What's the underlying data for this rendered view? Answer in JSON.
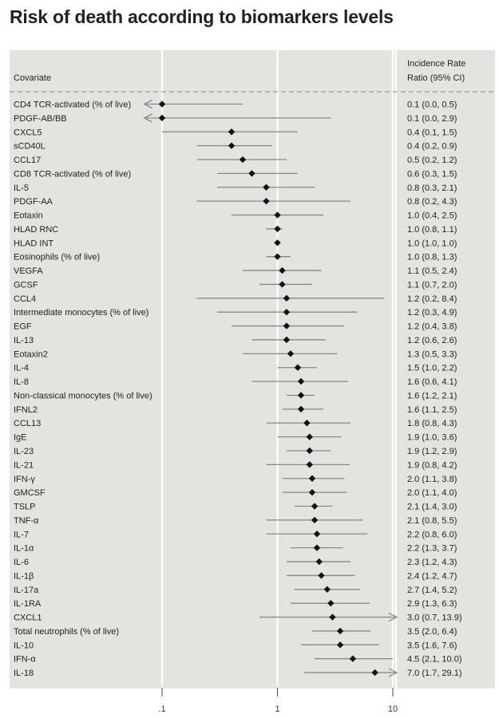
{
  "title": "Risk of death according to biomarkers levels",
  "chart_data": {
    "type": "forest",
    "xscale": "log",
    "ylabel": "Covariate",
    "right_header": [
      "Incidence Rate",
      "Ratio (95% CI)"
    ],
    "xticks": [
      {
        "value": 0.1,
        "label": ".1"
      },
      {
        "value": 1,
        "label": "1"
      },
      {
        "value": 10,
        "label": "10"
      }
    ],
    "reference_lines": [
      0.1,
      1,
      10
    ],
    "xlim": [
      0.07,
      10
    ],
    "colors": {
      "panel": "#e3e3df",
      "line": "#888888",
      "marker": "#111111"
    },
    "rows": [
      {
        "label": "CD4 TCR-activated (% of live)",
        "irr": 0.1,
        "lo": 0.0,
        "hi": 0.5,
        "text": "0.1 (0.0, 0.5)"
      },
      {
        "label": "PDGF-AB/BB",
        "irr": 0.1,
        "lo": 0.0,
        "hi": 2.9,
        "text": "0.1 (0.0, 2.9)"
      },
      {
        "label": "CXCL5",
        "irr": 0.4,
        "lo": 0.1,
        "hi": 1.5,
        "text": "0.4 (0.1, 1.5)"
      },
      {
        "label": "sCD40L",
        "irr": 0.4,
        "lo": 0.2,
        "hi": 0.9,
        "text": "0.4 (0.2, 0.9)"
      },
      {
        "label": "CCL17",
        "irr": 0.5,
        "lo": 0.2,
        "hi": 1.2,
        "text": "0.5 (0.2, 1.2)"
      },
      {
        "label": "CD8 TCR-activated (% of live)",
        "irr": 0.6,
        "lo": 0.3,
        "hi": 1.5,
        "text": "0.6 (0.3, 1.5)"
      },
      {
        "label": "IL-5",
        "irr": 0.8,
        "lo": 0.3,
        "hi": 2.1,
        "text": "0.8 (0.3, 2.1)"
      },
      {
        "label": "PDGF-AA",
        "irr": 0.8,
        "lo": 0.2,
        "hi": 4.3,
        "text": "0.8 (0.2, 4.3)"
      },
      {
        "label": "Eotaxin",
        "irr": 1.0,
        "lo": 0.4,
        "hi": 2.5,
        "text": "1.0 (0.4, 2.5)"
      },
      {
        "label": "HLAD RNC",
        "irr": 1.0,
        "lo": 0.8,
        "hi": 1.1,
        "text": "1.0 (0.8, 1.1)"
      },
      {
        "label": "HLAD INT",
        "irr": 1.0,
        "lo": 1.0,
        "hi": 1.0,
        "text": "1.0 (1.0, 1.0)"
      },
      {
        "label": "Eosinophils (% of live)",
        "irr": 1.0,
        "lo": 0.8,
        "hi": 1.3,
        "text": "1.0 (0.8, 1.3)"
      },
      {
        "label": "VEGFA",
        "irr": 1.1,
        "lo": 0.5,
        "hi": 2.4,
        "text": "1.1 (0.5, 2.4)"
      },
      {
        "label": "GCSF",
        "irr": 1.1,
        "lo": 0.7,
        "hi": 2.0,
        "text": "1.1 (0.7, 2.0)"
      },
      {
        "label": "CCL4",
        "irr": 1.2,
        "lo": 0.2,
        "hi": 8.4,
        "text": "1.2 (0.2, 8.4)"
      },
      {
        "label": "Intermediate monocytes (% of live)",
        "irr": 1.2,
        "lo": 0.3,
        "hi": 4.9,
        "text": "1.2 (0.3, 4.9)"
      },
      {
        "label": "EGF",
        "irr": 1.2,
        "lo": 0.4,
        "hi": 3.8,
        "text": "1.2 (0.4, 3.8)"
      },
      {
        "label": "IL-13",
        "irr": 1.2,
        "lo": 0.6,
        "hi": 2.6,
        "text": "1.2 (0.6, 2.6)"
      },
      {
        "label": "Eotaxin2",
        "irr": 1.3,
        "lo": 0.5,
        "hi": 3.3,
        "text": "1.3 (0.5, 3.3)"
      },
      {
        "label": "IL-4",
        "irr": 1.5,
        "lo": 1.0,
        "hi": 2.2,
        "text": "1.5 (1.0, 2.2)"
      },
      {
        "label": "IL-8",
        "irr": 1.6,
        "lo": 0.6,
        "hi": 4.1,
        "text": "1.6 (0.6, 4.1)"
      },
      {
        "label": "Non-classical monocytes (% of live)",
        "irr": 1.6,
        "lo": 1.2,
        "hi": 2.1,
        "text": "1.6 (1.2, 2.1)"
      },
      {
        "label": "IFNL2",
        "irr": 1.6,
        "lo": 1.1,
        "hi": 2.5,
        "text": "1.6 (1.1, 2.5)"
      },
      {
        "label": "CCL13",
        "irr": 1.8,
        "lo": 0.8,
        "hi": 4.3,
        "text": "1.8 (0.8, 4.3)"
      },
      {
        "label": "IgE",
        "irr": 1.9,
        "lo": 1.0,
        "hi": 3.6,
        "text": "1.9 (1.0, 3.6)"
      },
      {
        "label": "IL-23",
        "irr": 1.9,
        "lo": 1.2,
        "hi": 2.9,
        "text": "1.9 (1.2, 2.9)"
      },
      {
        "label": "IL-21",
        "irr": 1.9,
        "lo": 0.8,
        "hi": 4.2,
        "text": "1.9 (0.8, 4.2)"
      },
      {
        "label": "IFN-γ",
        "irr": 2.0,
        "lo": 1.1,
        "hi": 3.8,
        "text": "2.0 (1.1, 3.8)"
      },
      {
        "label": "GMCSF",
        "irr": 2.0,
        "lo": 1.1,
        "hi": 4.0,
        "text": "2.0 (1.1, 4.0)"
      },
      {
        "label": "TSLP",
        "irr": 2.1,
        "lo": 1.4,
        "hi": 3.0,
        "text": "2.1 (1.4, 3.0)"
      },
      {
        "label": "TNF-α",
        "irr": 2.1,
        "lo": 0.8,
        "hi": 5.5,
        "text": "2.1 (0.8, 5.5)"
      },
      {
        "label": "IL-7",
        "irr": 2.2,
        "lo": 0.8,
        "hi": 6.0,
        "text": "2.2 (0.8, 6.0)"
      },
      {
        "label": "IL-1α",
        "irr": 2.2,
        "lo": 1.3,
        "hi": 3.7,
        "text": "2.2 (1.3, 3.7)"
      },
      {
        "label": "IL-6",
        "irr": 2.3,
        "lo": 1.2,
        "hi": 4.3,
        "text": "2.3 (1.2, 4.3)"
      },
      {
        "label": "IL-1β",
        "irr": 2.4,
        "lo": 1.2,
        "hi": 4.7,
        "text": "2.4 (1.2, 4.7)"
      },
      {
        "label": "IL-17a",
        "irr": 2.7,
        "lo": 1.4,
        "hi": 5.2,
        "text": "2.7 (1.4, 5.2)"
      },
      {
        "label": "IL-1RA",
        "irr": 2.9,
        "lo": 1.3,
        "hi": 6.3,
        "text": "2.9 (1.3, 6.3)"
      },
      {
        "label": "CXCL1",
        "irr": 3.0,
        "lo": 0.7,
        "hi": 13.9,
        "text": "3.0 (0.7, 13.9)"
      },
      {
        "label": "Total neutrophils (% of live)",
        "irr": 3.5,
        "lo": 2.0,
        "hi": 6.4,
        "text": "3.5 (2.0, 6.4)"
      },
      {
        "label": "IL-10",
        "irr": 3.5,
        "lo": 1.6,
        "hi": 7.6,
        "text": "3.5 (1.6, 7.6)"
      },
      {
        "label": "IFN-α",
        "irr": 4.5,
        "lo": 2.1,
        "hi": 10.0,
        "text": "4.5 (2.1, 10.0)"
      },
      {
        "label": "IL-18",
        "irr": 7.0,
        "lo": 1.7,
        "hi": 29.1,
        "text": "7.0 (1.7, 29.1)"
      }
    ]
  }
}
